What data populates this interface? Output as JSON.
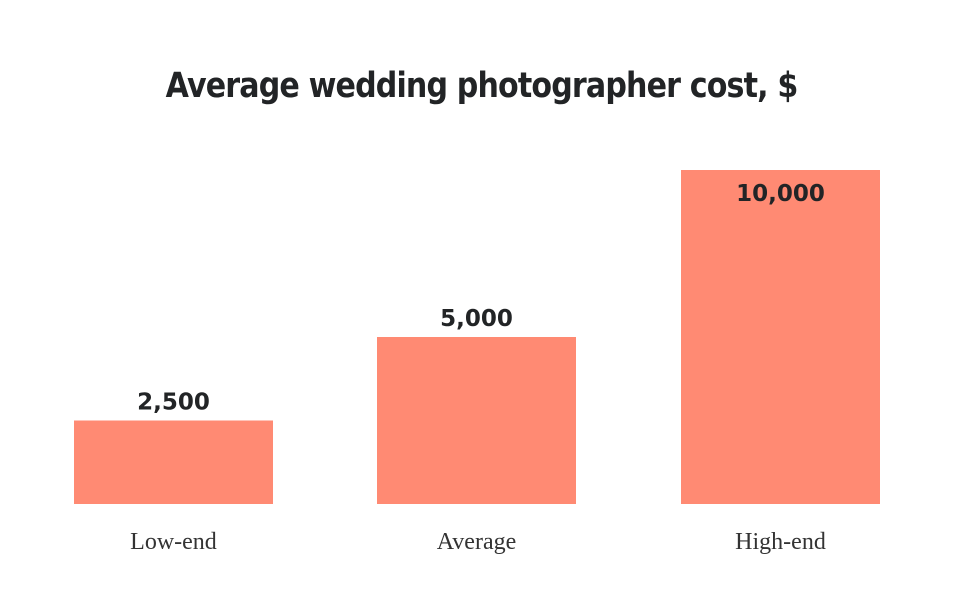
{
  "chart_data": {
    "type": "bar",
    "title": "Average wedding photographer cost, $",
    "categories": [
      "Low-end",
      "Average",
      "High-end"
    ],
    "values": [
      2500,
      5000,
      10000
    ],
    "value_labels": [
      "2,500",
      "5,000",
      "10,000"
    ],
    "bar_color": "#FF8A73",
    "text_color": "#222426",
    "ylim": [
      0,
      10000
    ],
    "grid": false,
    "axes_visible": false
  }
}
